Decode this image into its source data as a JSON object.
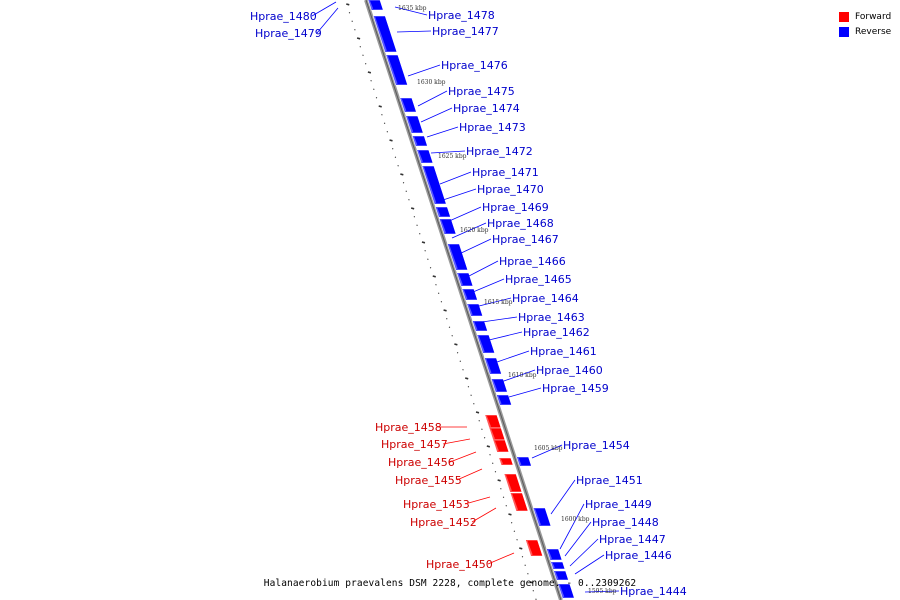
{
  "legend": [
    {
      "label": "Forward",
      "color": "#ff0000"
    },
    {
      "label": "Reverse",
      "color": "#0000ff"
    }
  ],
  "caption": "Halanaerobium praevalens DSM 2228, complete genome. - 0..2309262",
  "kbp_marks": [
    "1635 kbp",
    "1630 kbp",
    "1625 kbp",
    "1620 kbp",
    "1615 kbp",
    "1610 kbp",
    "1605 kbp",
    "1600 kbp",
    "1595 kbp"
  ],
  "genes": [
    {
      "name": "Hprae_1480",
      "strand": "reverse"
    },
    {
      "name": "Hprae_1479",
      "strand": "reverse"
    },
    {
      "name": "Hprae_1478",
      "strand": "reverse"
    },
    {
      "name": "Hprae_1477",
      "strand": "reverse"
    },
    {
      "name": "Hprae_1476",
      "strand": "reverse"
    },
    {
      "name": "Hprae_1475",
      "strand": "reverse"
    },
    {
      "name": "Hprae_1474",
      "strand": "reverse"
    },
    {
      "name": "Hprae_1473",
      "strand": "reverse"
    },
    {
      "name": "Hprae_1472",
      "strand": "reverse"
    },
    {
      "name": "Hprae_1471",
      "strand": "reverse"
    },
    {
      "name": "Hprae_1470",
      "strand": "reverse"
    },
    {
      "name": "Hprae_1469",
      "strand": "reverse"
    },
    {
      "name": "Hprae_1468",
      "strand": "reverse"
    },
    {
      "name": "Hprae_1467",
      "strand": "reverse"
    },
    {
      "name": "Hprae_1466",
      "strand": "reverse"
    },
    {
      "name": "Hprae_1465",
      "strand": "reverse"
    },
    {
      "name": "Hprae_1464",
      "strand": "reverse"
    },
    {
      "name": "Hprae_1463",
      "strand": "reverse"
    },
    {
      "name": "Hprae_1462",
      "strand": "reverse"
    },
    {
      "name": "Hprae_1461",
      "strand": "reverse"
    },
    {
      "name": "Hprae_1460",
      "strand": "reverse"
    },
    {
      "name": "Hprae_1459",
      "strand": "reverse"
    },
    {
      "name": "Hprae_1458",
      "strand": "forward"
    },
    {
      "name": "Hprae_1457",
      "strand": "forward"
    },
    {
      "name": "Hprae_1456",
      "strand": "forward"
    },
    {
      "name": "Hprae_1455",
      "strand": "forward"
    },
    {
      "name": "Hprae_1454",
      "strand": "reverse"
    },
    {
      "name": "Hprae_1453",
      "strand": "forward"
    },
    {
      "name": "Hprae_1452",
      "strand": "forward"
    },
    {
      "name": "Hprae_1451",
      "strand": "reverse"
    },
    {
      "name": "Hprae_1450",
      "strand": "forward"
    },
    {
      "name": "Hprae_1449",
      "strand": "reverse"
    },
    {
      "name": "Hprae_1448",
      "strand": "reverse"
    },
    {
      "name": "Hprae_1447",
      "strand": "reverse"
    },
    {
      "name": "Hprae_1446",
      "strand": "reverse"
    },
    {
      "name": "Hprae_1444",
      "strand": "reverse"
    }
  ]
}
